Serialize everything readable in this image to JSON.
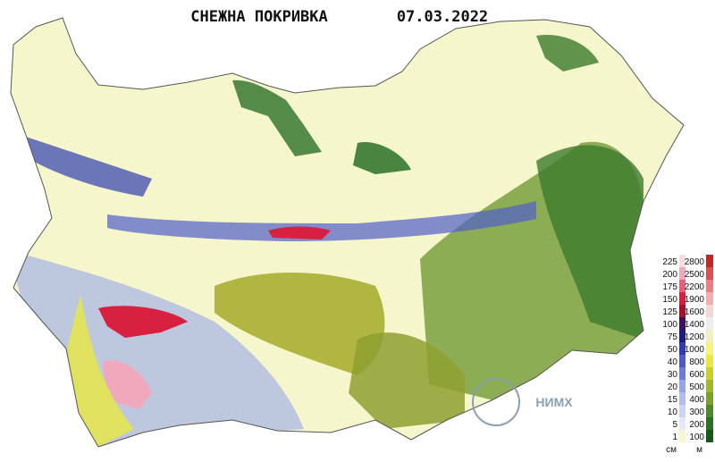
{
  "header": {
    "title": "СНЕЖНА ПОКРИВКА",
    "date": "07.03.2022"
  },
  "legend": {
    "snow": [
      225,
      200,
      175,
      150,
      125,
      100,
      75,
      50,
      40,
      30,
      20,
      15,
      10,
      5,
      1
    ],
    "height": [
      2800,
      2500,
      2200,
      1900,
      1600,
      1400,
      1200,
      1000,
      800,
      600,
      500,
      400,
      300,
      200,
      100
    ],
    "snow_colors": [
      "#f8dce4",
      "#f2a8bc",
      "#e8607c",
      "#d8203c",
      "#a8102c",
      "#3a1060",
      "#1c1c80",
      "#2c3cb0",
      "#4a5cc4",
      "#6c7cd4",
      "#94a4e4",
      "#b4bcee",
      "#ccd4f6",
      "#e4e8f8",
      "#f8f8d0"
    ],
    "height_colors": [
      "#c02828",
      "#d85050",
      "#e88080",
      "#f0b0b0",
      "#f4d8d8",
      "#eeeeee",
      "#f0f0c0",
      "#f4f480",
      "#e8e840",
      "#c8d030",
      "#a0b830",
      "#7ca030",
      "#508830",
      "#2c7028",
      "#185818"
    ],
    "snow_unit": "см",
    "height_unit": "м"
  },
  "logo": {
    "text": "НИМХ"
  }
}
